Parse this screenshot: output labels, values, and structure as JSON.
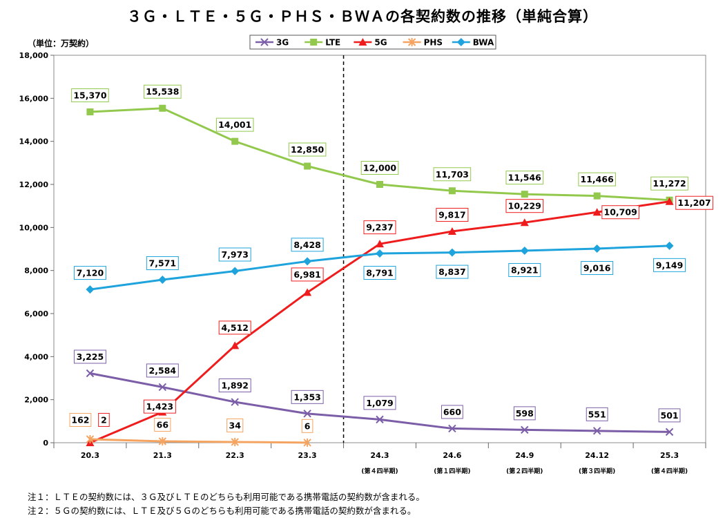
{
  "title": "３Ｇ・ＬＴＥ・５Ｇ・ＰＨＳ・ＢＷＡの各契約数の推移（単純合算）",
  "unit_label": "（単位：万契約）",
  "notes": [
    "注１：ＬＴＥの契約数には、３Ｇ及びＬＴＥのどちらも利用可能である携帯電話の契約数が含まれる。",
    "注２：５Ｇの契約数には、ＬＴＥ及び５Ｇのどちらも利用可能である携帯電話の契約数が含まれる。"
  ],
  "colors": {
    "3G": "#7b5ea7",
    "LTE": "#92c94d",
    "5G": "#ee1c1c",
    "PHS": "#f4a460",
    "BWA": "#1ea3dc"
  },
  "chart_data": {
    "type": "line",
    "categories": [
      "20.3",
      "21.3",
      "22.3",
      "23.3",
      "24.3",
      "24.6",
      "24.9",
      "24.12",
      "25.3"
    ],
    "category_sublabels": [
      "",
      "",
      "",
      "",
      "(第４四半期)",
      "(第１四半期)",
      "(第２四半期)",
      "(第３四半期)",
      "(第４四半期)"
    ],
    "ylim": [
      0,
      18000
    ],
    "yticks": [
      0,
      2000,
      4000,
      6000,
      8000,
      10000,
      12000,
      14000,
      16000,
      18000
    ],
    "ytick_labels": [
      "0",
      "2,000",
      "4,000",
      "6,000",
      "8,000",
      "10,000",
      "12,000",
      "14,000",
      "16,000",
      "18,000"
    ],
    "divider_after_category": "23.3",
    "legend_position": "top-right",
    "series": [
      {
        "name": "3G",
        "marker": "x",
        "values": [
          3225,
          2584,
          1892,
          1353,
          1079,
          660,
          598,
          551,
          501
        ],
        "labels": [
          "3,225",
          "2,584",
          "1,892",
          "1,353",
          "1,079",
          "660",
          "598",
          "551",
          "501"
        ]
      },
      {
        "name": "LTE",
        "marker": "square",
        "values": [
          15370,
          15538,
          14001,
          12850,
          12000,
          11703,
          11546,
          11466,
          11272
        ],
        "labels": [
          "15,370",
          "15,538",
          "14,001",
          "12,850",
          "12,000",
          "11,703",
          "11,546",
          "11,466",
          "11,272"
        ]
      },
      {
        "name": "5G",
        "marker": "triangle",
        "values": [
          2,
          1423,
          4512,
          6981,
          9237,
          9817,
          10229,
          10709,
          11207
        ],
        "labels": [
          "2",
          "1,423",
          "4,512",
          "6,981",
          "9,237",
          "9,817",
          "10,229",
          "10,709",
          "11,207"
        ]
      },
      {
        "name": "PHS",
        "marker": "star",
        "values": [
          162,
          66,
          34,
          6,
          null,
          null,
          null,
          null,
          null
        ],
        "labels": [
          "162",
          "66",
          "34",
          "6",
          null,
          null,
          null,
          null,
          null
        ]
      },
      {
        "name": "BWA",
        "marker": "diamond",
        "values": [
          7120,
          7571,
          7973,
          8428,
          8791,
          8837,
          8921,
          9016,
          9149
        ],
        "labels": [
          "7,120",
          "7,571",
          "7,973",
          "8,428",
          "8,791",
          "8,837",
          "8,921",
          "9,016",
          "9,149"
        ]
      }
    ]
  }
}
